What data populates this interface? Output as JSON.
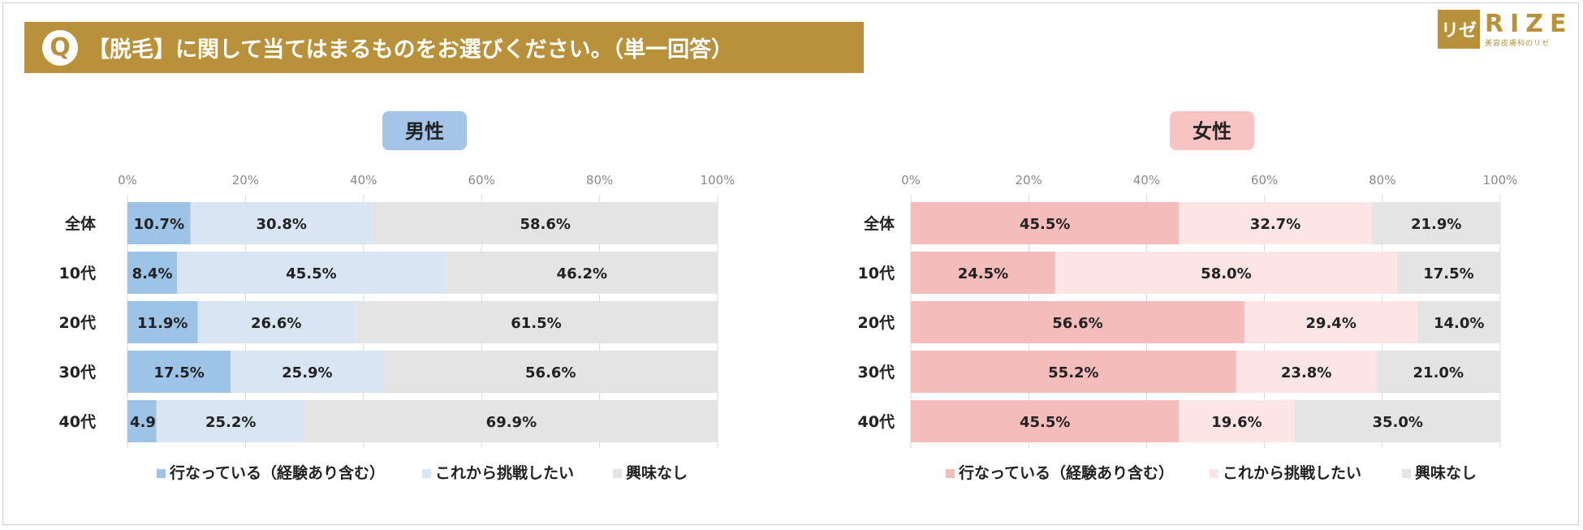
{
  "question": {
    "badge": "Q",
    "text": "【脱毛】に関して当てはまるものをお選びください。（単一回答）"
  },
  "logo": {
    "mark": "リゼ",
    "brand": "RIZE",
    "sub": "美容皮膚科のリゼ"
  },
  "colors": {
    "banner": "#b8913a",
    "male_badge": "#a4c4e8",
    "female_badge": "#f7c3c3"
  },
  "chart_data": [
    {
      "type": "bar",
      "orientation": "horizontal-stacked-100",
      "title": "男性",
      "categories": [
        "全体",
        "10代",
        "20代",
        "30代",
        "40代"
      ],
      "xlim": [
        0,
        100
      ],
      "ticks": [
        "0%",
        "20%",
        "40%",
        "60%",
        "80%",
        "100%"
      ],
      "series": [
        {
          "name": "行なっている（経験あり含む）",
          "color": "#9dc3e6",
          "values": [
            10.7,
            8.4,
            11.9,
            17.5,
            4.9
          ]
        },
        {
          "name": "これから挑戦したい",
          "color": "#dae5f4",
          "values": [
            30.8,
            45.5,
            26.6,
            25.9,
            25.2
          ]
        },
        {
          "name": "興味なし",
          "color": "#e4e4e4",
          "values": [
            58.6,
            46.2,
            61.5,
            56.6,
            69.9
          ]
        }
      ],
      "legend": "bottom"
    },
    {
      "type": "bar",
      "orientation": "horizontal-stacked-100",
      "title": "女性",
      "categories": [
        "全体",
        "10代",
        "20代",
        "30代",
        "40代"
      ],
      "xlim": [
        0,
        100
      ],
      "ticks": [
        "0%",
        "20%",
        "40%",
        "60%",
        "80%",
        "100%"
      ],
      "series": [
        {
          "name": "行なっている（経験あり含む）",
          "color": "#f5bcbc",
          "values": [
            45.5,
            24.5,
            56.6,
            55.2,
            45.5
          ]
        },
        {
          "name": "これから挑戦したい",
          "color": "#fde5e5",
          "values": [
            32.7,
            58.0,
            29.4,
            23.8,
            19.6
          ]
        },
        {
          "name": "興味なし",
          "color": "#e4e4e4",
          "values": [
            21.9,
            17.5,
            14.0,
            21.0,
            35.0
          ]
        }
      ],
      "legend": "bottom"
    }
  ]
}
